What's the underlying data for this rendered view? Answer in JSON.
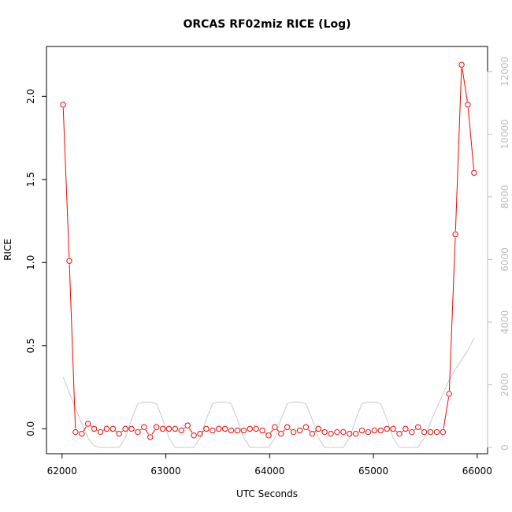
{
  "chart_data": {
    "type": "line",
    "title": "ORCAS RF02miz RICE (Log)",
    "xlabel": "UTC Seconds",
    "ylabel": "RICE",
    "xlim": [
      61850,
      66100
    ],
    "ylim": [
      -0.15,
      2.3
    ],
    "y2lim": [
      -200,
      12800
    ],
    "x_ticks": [
      62000,
      63000,
      64000,
      65000,
      66000
    ],
    "x_tick_labels": [
      "62000",
      "63000",
      "64000",
      "65000",
      "66000"
    ],
    "y_ticks": [
      0.0,
      0.5,
      1.0,
      1.5,
      2.0
    ],
    "y_tick_labels": [
      "0.0",
      "0.5",
      "1.0",
      "1.5",
      "2.0"
    ],
    "y2_ticks": [
      0,
      2000,
      4000,
      6000,
      8000,
      10000,
      12000
    ],
    "y2_tick_labels": [
      "0",
      "2000",
      "4000",
      "6000",
      "8000",
      "10000",
      "12000"
    ],
    "grid": false,
    "series": [
      {
        "color": "#ff0000",
        "style": "line+open-circles",
        "axis": "left",
        "x": [
          62010,
          62070,
          62130,
          62190,
          62250,
          62310,
          62370,
          62430,
          62490,
          62550,
          62610,
          62670,
          62730,
          62790,
          62850,
          62910,
          62970,
          63030,
          63090,
          63150,
          63210,
          63270,
          63330,
          63390,
          63450,
          63510,
          63570,
          63630,
          63690,
          63750,
          63810,
          63870,
          63930,
          63990,
          64050,
          64110,
          64170,
          64230,
          64290,
          64350,
          64410,
          64470,
          64530,
          64590,
          64650,
          64710,
          64770,
          64830,
          64890,
          64950,
          65010,
          65070,
          65130,
          65190,
          65250,
          65310,
          65370,
          65430,
          65490,
          65550,
          65610,
          65670,
          65730,
          65790,
          65850,
          65910,
          65970
        ],
        "y": [
          1.95,
          1.01,
          -0.02,
          -0.03,
          0.03,
          0.0,
          -0.02,
          0.0,
          0.0,
          -0.03,
          0.0,
          0.0,
          -0.02,
          0.01,
          -0.05,
          0.01,
          0.0,
          0.0,
          0.0,
          -0.01,
          0.02,
          -0.04,
          -0.03,
          0.0,
          -0.01,
          0.0,
          0.0,
          -0.01,
          -0.01,
          -0.01,
          0.0,
          0.0,
          -0.01,
          -0.04,
          0.01,
          -0.03,
          0.01,
          -0.02,
          -0.01,
          0.01,
          -0.03,
          0.0,
          -0.02,
          -0.03,
          -0.02,
          -0.02,
          -0.03,
          -0.03,
          -0.01,
          -0.02,
          -0.01,
          -0.01,
          0.0,
          0.0,
          -0.03,
          0.0,
          -0.02,
          0.01,
          -0.02,
          -0.02,
          -0.02,
          -0.02,
          0.21,
          1.17,
          2.19,
          1.95,
          1.54
        ]
      },
      {
        "color": "#c8c8c8",
        "style": "line",
        "axis": "right",
        "x": [
          62010,
          62070,
          62130,
          62190,
          62250,
          62310,
          62370,
          62430,
          62490,
          62550,
          62610,
          62670,
          62730,
          62790,
          62850,
          62910,
          62970,
          63030,
          63090,
          63150,
          63210,
          63270,
          63330,
          63390,
          63450,
          63510,
          63570,
          63630,
          63690,
          63750,
          63810,
          63870,
          63930,
          63990,
          64050,
          64110,
          64170,
          64230,
          64290,
          64350,
          64410,
          64470,
          64530,
          64590,
          64650,
          64710,
          64770,
          64830,
          64890,
          64950,
          65010,
          65070,
          65130,
          65190,
          65250,
          65310,
          65370,
          65430,
          65490,
          65550,
          65610,
          65670,
          65730,
          65790,
          65850,
          65910,
          65970
        ],
        "y": [
          2250,
          1750,
          1250,
          750,
          300,
          50,
          0,
          0,
          0,
          0,
          300,
          900,
          1400,
          1450,
          1450,
          1400,
          900,
          300,
          0,
          0,
          0,
          0,
          300,
          900,
          1400,
          1450,
          1450,
          1400,
          900,
          300,
          0,
          0,
          0,
          0,
          300,
          900,
          1400,
          1450,
          1450,
          1400,
          900,
          300,
          0,
          0,
          0,
          0,
          300,
          900,
          1400,
          1450,
          1450,
          1400,
          900,
          300,
          0,
          0,
          0,
          0,
          300,
          800,
          1250,
          1700,
          2150,
          2500,
          2800,
          3100,
          3500
        ]
      }
    ]
  }
}
